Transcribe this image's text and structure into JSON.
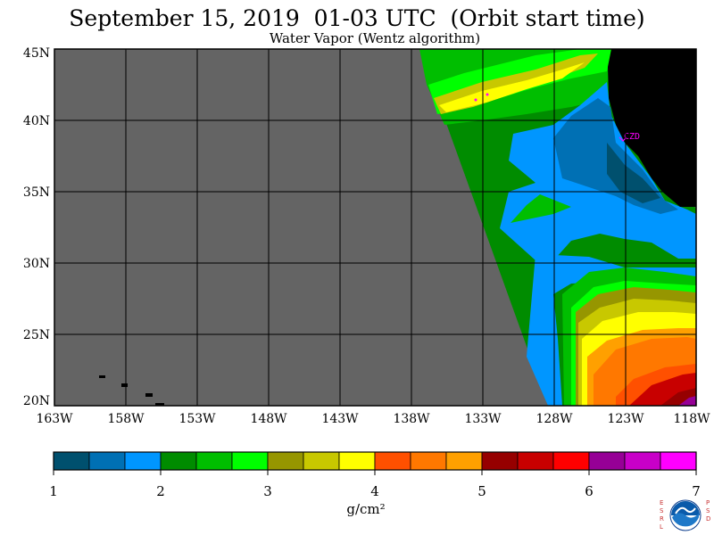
{
  "title": "September 15, 2019  01-03 UTC  (Orbit start time)",
  "subtitle": "Water Vapor (Wentz algorithm)",
  "station": "CZD",
  "y_labels": [
    "45N",
    "40N",
    "35N",
    "30N",
    "25N",
    "20N"
  ],
  "x_labels": [
    "163W",
    "158W",
    "153W",
    "148W",
    "143W",
    "138W",
    "133W",
    "128W",
    "123W",
    "118W"
  ],
  "colorbar": {
    "ticks": [
      "1",
      "2",
      "3",
      "4",
      "5",
      "6",
      "7"
    ],
    "unit": "g/cm²",
    "colors": [
      "#00506e",
      "#0070b4",
      "#0096ff",
      "#008c00",
      "#00be00",
      "#00ff00",
      "#969600",
      "#c8c800",
      "#ffff00",
      "#ff5000",
      "#ff7800",
      "#ffa000",
      "#960000",
      "#c80000",
      "#ff0000",
      "#960096",
      "#c800c8",
      "#ff00ff"
    ]
  },
  "logo": {
    "left": "E S R L",
    "right": "P S D",
    "center": "NOAA"
  },
  "colors": {
    "nodata": "#646464",
    "land": "#000000",
    "grid": "#000000"
  }
}
